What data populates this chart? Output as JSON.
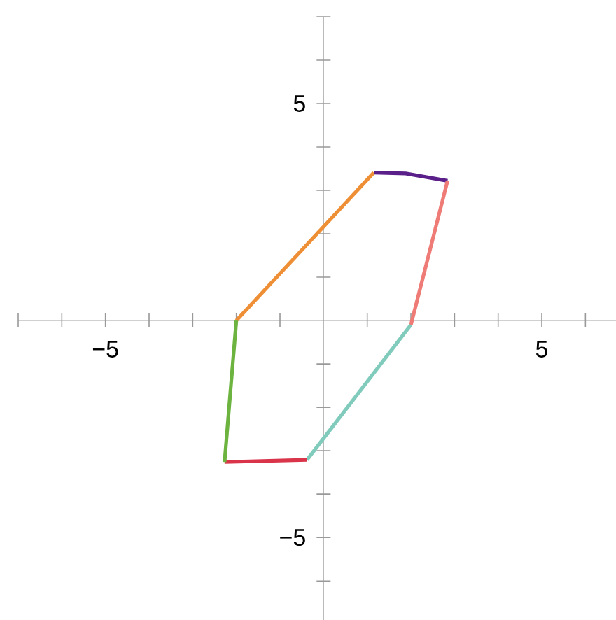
{
  "chart_data": {
    "type": "line",
    "series": [
      {
        "color": "#ee8f35",
        "x": [
          -2.0,
          1.15
        ],
        "values": [
          0.0,
          3.41
        ]
      },
      {
        "color": "#5b1f8a",
        "x": [
          1.15,
          1.88,
          2.84
        ],
        "values": [
          3.41,
          3.39,
          3.22
        ]
      },
      {
        "color": "#ef7b77",
        "x": [
          2.84,
          2.0
        ],
        "values": [
          3.22,
          -0.1
        ]
      },
      {
        "color": "#80cbbc",
        "x": [
          2.0,
          -0.38
        ],
        "values": [
          -0.1,
          -3.21
        ]
      },
      {
        "color": "#d9344a",
        "x": [
          -0.38,
          -2.27
        ],
        "values": [
          -3.21,
          -3.26
        ]
      },
      {
        "color": "#6db33f",
        "x": [
          -2.27,
          -2.0
        ],
        "values": [
          -3.26,
          0.0
        ]
      }
    ],
    "xlim": [
      -7,
      6.7
    ],
    "ylim": [
      -6.9,
      7
    ],
    "xticks": [
      {
        "value": -7,
        "label": null
      },
      {
        "value": -6,
        "label": null
      },
      {
        "value": -5,
        "label": "−5"
      },
      {
        "value": -4,
        "label": null
      },
      {
        "value": -3,
        "label": null
      },
      {
        "value": -2,
        "label": null
      },
      {
        "value": -1,
        "label": null
      },
      {
        "value": 1,
        "label": null
      },
      {
        "value": 2,
        "label": null
      },
      {
        "value": 3,
        "label": null
      },
      {
        "value": 4,
        "label": null
      },
      {
        "value": 5,
        "label": "5"
      },
      {
        "value": 6,
        "label": null
      }
    ],
    "yticks": [
      {
        "value": -6,
        "label": null
      },
      {
        "value": -5,
        "label": "−5"
      },
      {
        "value": -4,
        "label": null
      },
      {
        "value": -3,
        "label": null
      },
      {
        "value": -2,
        "label": null
      },
      {
        "value": -1,
        "label": null
      },
      {
        "value": 1,
        "label": null
      },
      {
        "value": 2,
        "label": null
      },
      {
        "value": 3,
        "label": null
      },
      {
        "value": 4,
        "label": null
      },
      {
        "value": 5,
        "label": "5"
      },
      {
        "value": 6,
        "label": null
      },
      {
        "value": 7,
        "label": null
      }
    ]
  }
}
